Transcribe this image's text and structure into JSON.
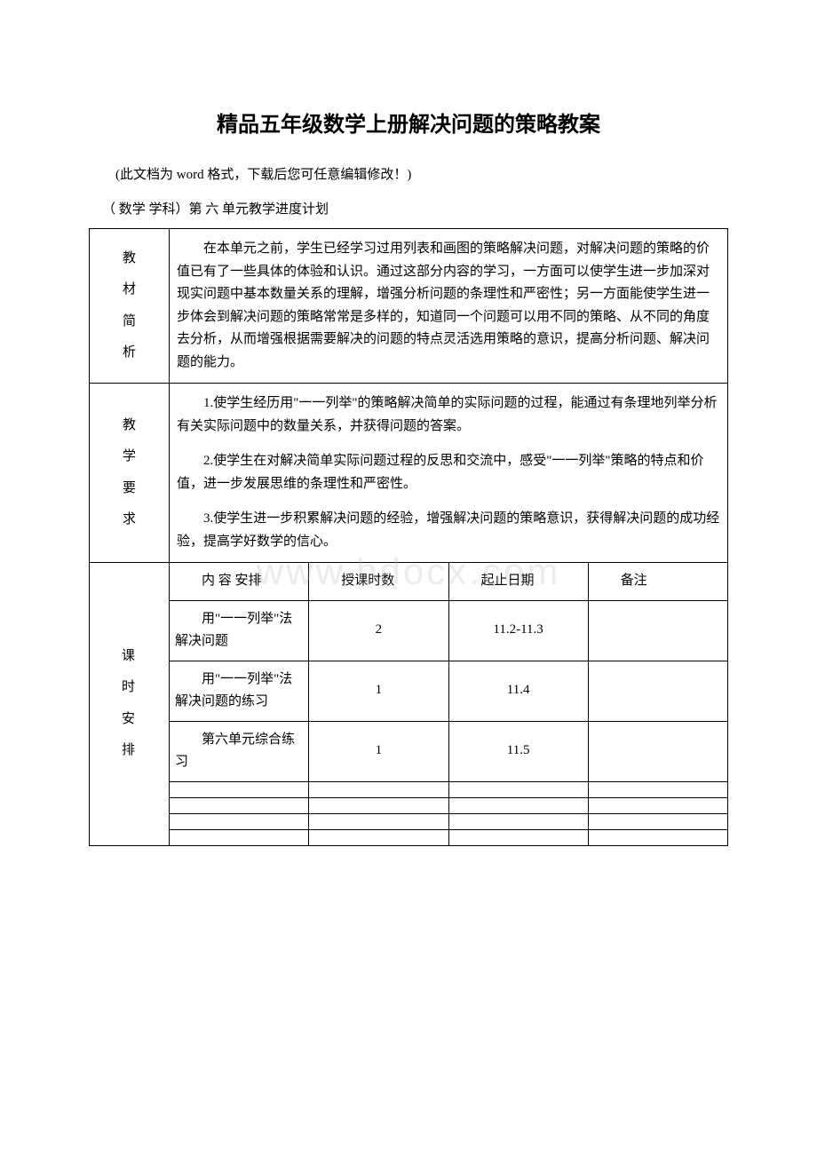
{
  "title": "精品五年级数学上册解决问题的策略教案",
  "note": "(此文档为 word 格式，下载后您可任意编辑修改！)",
  "subtitle": "（ 数学 学科）第 六 单元教学进度计划",
  "watermark": "www.bdocx.com",
  "sections": {
    "analysis": {
      "label1": "教",
      "label2": "材",
      "label3": "简",
      "label4": "析",
      "content": "在本单元之前，学生已经学习过用列表和画图的策略解决问题，对解决问题的策略的价值已有了一些具体的体验和认识。通过这部分内容的学习，一方面可以使学生进一步加深对现实问题中基本数量关系的理解，增强分析问题的条理性和严密性；另一方面能使学生进一步体会到解决问题的策略常常是多样的，知道同一个问题可以用不同的策略、从不同的角度去分析，从而增强根据需要解决的问题的特点灵活选用策略的意识，提高分析问题、解决问题的能力。"
    },
    "goals": {
      "label1": "教",
      "label2": "学",
      "label3": "要",
      "label4": "求",
      "p1": "1.使学生经历用\"一一列举\"的策略解决简单的实际问题的过程，能通过有条理地列举分析有关实际问题中的数量关系，并获得问题的答案。",
      "p2": "2.使学生在对解决简单实际问题过程的反思和交流中，感受\"一一列举\"策略的特点和价值，进一步发展思维的条理性和严密性。",
      "p3": "3.使学生进一步积累解决问题的经验，增强解决问题的策略意识，获得解决问题的成功经验，提高学好数学的信心。"
    },
    "schedule": {
      "label1": "课",
      "label2": "时",
      "label3": "安",
      "label4": "排",
      "headers": {
        "content": "内 容 安排",
        "hours": "授课时数",
        "date": "起止日期",
        "remark": "备注"
      },
      "rows": [
        {
          "content": "用\"一一列举\"法解决问题",
          "hours": "2",
          "date": "11.2-11.3",
          "remark": ""
        },
        {
          "content": "用\"一一列举\"法解决问题的练习",
          "hours": "1",
          "date": "11.4",
          "remark": ""
        },
        {
          "content": "第六单元综合练习",
          "hours": "1",
          "date": "11.5",
          "remark": ""
        }
      ]
    }
  }
}
